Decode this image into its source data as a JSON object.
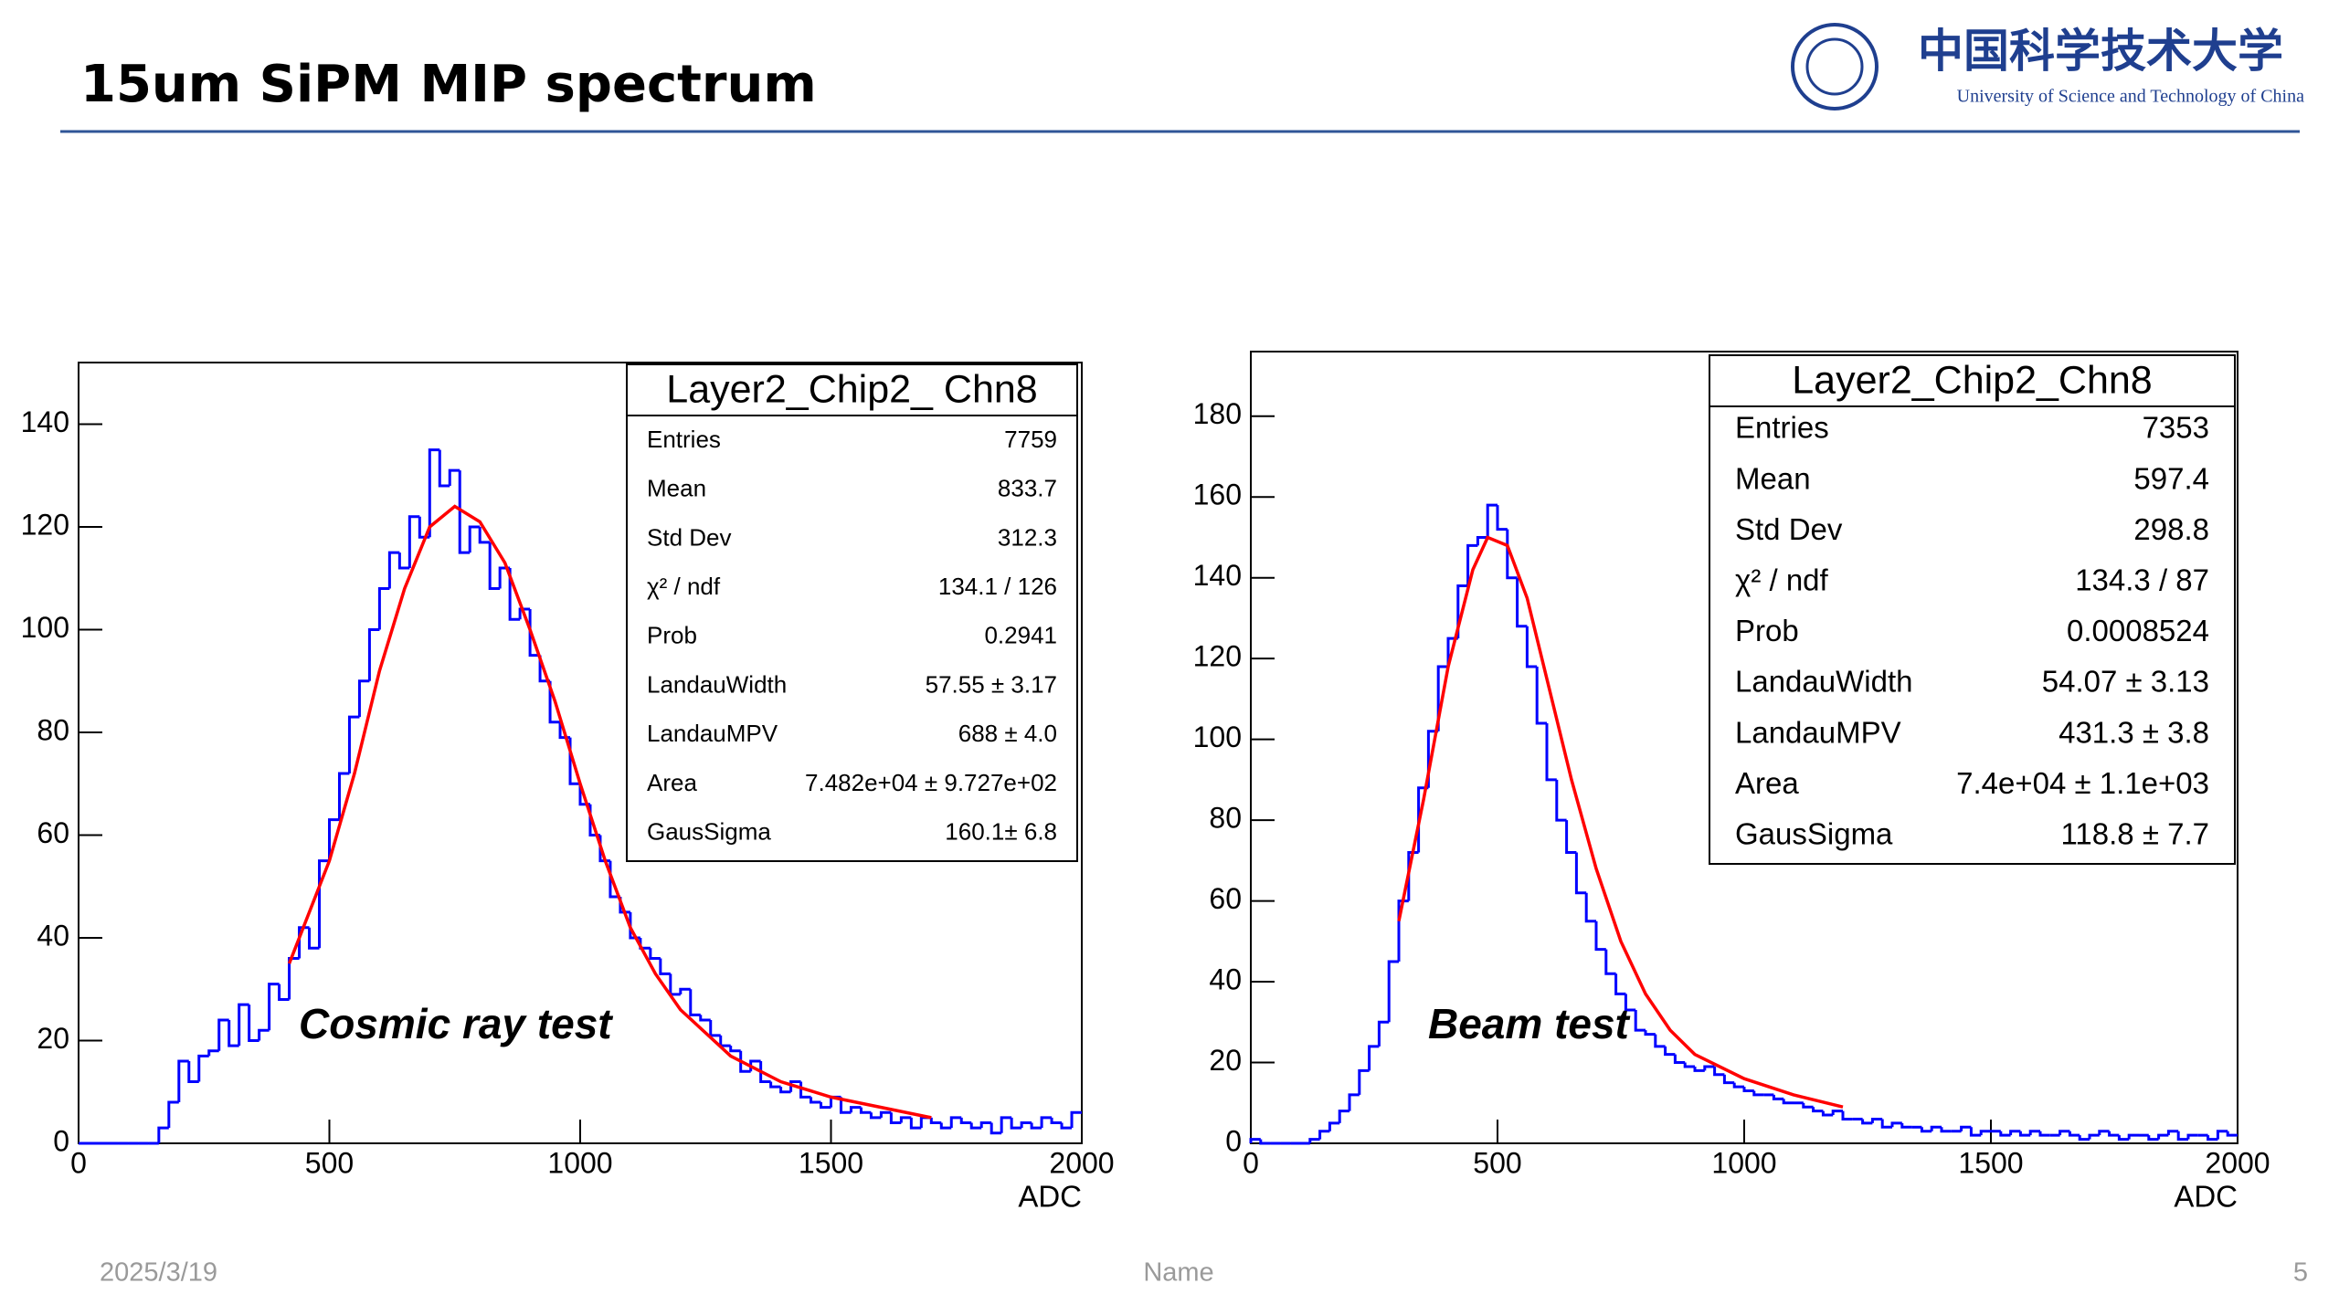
{
  "header": {
    "title": "15um SiPM MIP spectrum",
    "logo_cn": "中国科学技术大学",
    "logo_en": "University of Science and Technology of China"
  },
  "footer": {
    "date": "2025/3/19",
    "name": "Name",
    "page": "5"
  },
  "chart_data": [
    {
      "type": "histogram",
      "title": "Layer2_Chip2_ Chn8",
      "annotation": "Cosmic ray test",
      "xlabel": "ADC",
      "color": "#0000ff",
      "stats": [
        {
          "label": "Entries",
          "value": "7759"
        },
        {
          "label": "Mean",
          "value": "833.7"
        },
        {
          "label": "Std Dev",
          "value": "312.3"
        },
        {
          "label": "χ² / ndf",
          "value": "134.1 / 126"
        },
        {
          "label": "Prob",
          "value": "0.2941"
        },
        {
          "label": "LandauWidth",
          "value": "57.55 ± 3.17"
        },
        {
          "label": "LandauMPV",
          "value": "688 ± 4.0"
        },
        {
          "label": "Area",
          "value": "7.482e+04 ± 9.727e+02"
        },
        {
          "label": "GausSigma",
          "value": "160.1± 6.8"
        }
      ],
      "bins": [
        0,
        20,
        40,
        60,
        80,
        100,
        120,
        140,
        160,
        180,
        200,
        220,
        240,
        260,
        280,
        300,
        320,
        340,
        360,
        380,
        400,
        420,
        440,
        460,
        480,
        500,
        520,
        540,
        560,
        580,
        600,
        620,
        640,
        660,
        680,
        700,
        720,
        740,
        760,
        780,
        800,
        820,
        840,
        860,
        880,
        900,
        920,
        940,
        960,
        980,
        1000,
        1020,
        1040,
        1060,
        1080,
        1100,
        1120,
        1140,
        1160,
        1180,
        1200,
        1220,
        1240,
        1260,
        1280,
        1300,
        1320,
        1340,
        1360,
        1380,
        1400,
        1420,
        1440,
        1460,
        1480,
        1500,
        1520,
        1540,
        1560,
        1580,
        1600,
        1620,
        1640,
        1660,
        1680,
        1700,
        1720,
        1740,
        1760,
        1780,
        1800,
        1820,
        1840,
        1860,
        1880,
        1900,
        1920,
        1940,
        1960,
        1980,
        2000
      ],
      "values": [
        0,
        0,
        0,
        0,
        0,
        0,
        0,
        0,
        3,
        8,
        16,
        12,
        17,
        18,
        24,
        19,
        27,
        20,
        22,
        31,
        28,
        36,
        42,
        38,
        55,
        63,
        72,
        83,
        90,
        100,
        108,
        115,
        112,
        122,
        118,
        135,
        128,
        131,
        115,
        120,
        117,
        108,
        112,
        102,
        104,
        95,
        90,
        82,
        79,
        70,
        66,
        60,
        55,
        48,
        45,
        40,
        38,
        36,
        33,
        29,
        30,
        25,
        24,
        21,
        19,
        18,
        14,
        16,
        12,
        11,
        10,
        12,
        9,
        8,
        7,
        9,
        6,
        7,
        6,
        5,
        6,
        4,
        5,
        3,
        5,
        4,
        3,
        5,
        4,
        3,
        4,
        2,
        5,
        3,
        4,
        3,
        5,
        4,
        3,
        6
      ],
      "fit": {
        "color": "#ff0000",
        "x": [
          420,
          500,
          550,
          600,
          650,
          700,
          750,
          800,
          850,
          900,
          950,
          1000,
          1050,
          1100,
          1150,
          1200,
          1300,
          1400,
          1500,
          1600,
          1700
        ],
        "y": [
          35,
          55,
          72,
          92,
          108,
          120,
          124,
          121,
          113,
          100,
          86,
          70,
          55,
          42,
          33,
          26,
          17,
          12,
          9,
          7,
          5
        ]
      },
      "xlim": [
        0,
        2000
      ],
      "ylim": [
        0,
        152
      ],
      "xticks": [
        0,
        500,
        1000,
        1500,
        2000
      ],
      "yticks": [
        0,
        20,
        40,
        60,
        80,
        100,
        120,
        140
      ]
    },
    {
      "type": "histogram",
      "title": "Layer2_Chip2_Chn8",
      "annotation": "Beam test",
      "xlabel": "ADC",
      "color": "#0000ff",
      "stats": [
        {
          "label": "Entries",
          "value": "7353"
        },
        {
          "label": "Mean",
          "value": "597.4"
        },
        {
          "label": "Std Dev",
          "value": "298.8"
        },
        {
          "label": "χ² / ndf",
          "value": "134.3 / 87"
        },
        {
          "label": "Prob",
          "value": "0.0008524"
        },
        {
          "label": "LandauWidth",
          "value": "54.07 ± 3.13"
        },
        {
          "label": "LandauMPV",
          "value": "431.3 ± 3.8"
        },
        {
          "label": "Area",
          "value": "7.4e+04 ± 1.1e+03"
        },
        {
          "label": "GausSigma",
          "value": "118.8 ± 7.7"
        }
      ],
      "bins": [
        0,
        20,
        40,
        60,
        80,
        100,
        120,
        140,
        160,
        180,
        200,
        220,
        240,
        260,
        280,
        300,
        320,
        340,
        360,
        380,
        400,
        420,
        440,
        460,
        480,
        500,
        520,
        540,
        560,
        580,
        600,
        620,
        640,
        660,
        680,
        700,
        720,
        740,
        760,
        780,
        800,
        820,
        840,
        860,
        880,
        900,
        920,
        940,
        960,
        980,
        1000,
        1020,
        1040,
        1060,
        1080,
        1100,
        1120,
        1140,
        1160,
        1180,
        1200,
        1220,
        1240,
        1260,
        1280,
        1300,
        1320,
        1340,
        1360,
        1380,
        1400,
        1420,
        1440,
        1460,
        1480,
        1500,
        1520,
        1540,
        1560,
        1580,
        1600,
        1620,
        1640,
        1660,
        1680,
        1700,
        1720,
        1740,
        1760,
        1780,
        1800,
        1820,
        1840,
        1860,
        1880,
        1900,
        1920,
        1940,
        1960,
        1980,
        2000
      ],
      "values": [
        1,
        0,
        0,
        0,
        0,
        0,
        1,
        3,
        5,
        8,
        12,
        18,
        24,
        30,
        45,
        60,
        72,
        88,
        102,
        118,
        125,
        138,
        148,
        150,
        158,
        152,
        140,
        128,
        118,
        104,
        90,
        80,
        72,
        62,
        55,
        48,
        42,
        37,
        33,
        28,
        27,
        24,
        22,
        20,
        19,
        18,
        19,
        17,
        15,
        14,
        13,
        12,
        12,
        11,
        10,
        10,
        9,
        8,
        7,
        8,
        6,
        6,
        5,
        6,
        4,
        5,
        4,
        4,
        3,
        4,
        3,
        3,
        4,
        2,
        3,
        3,
        2,
        3,
        2,
        3,
        2,
        2,
        3,
        2,
        1,
        2,
        3,
        2,
        1,
        2,
        2,
        1,
        2,
        3,
        1,
        2,
        2,
        1,
        3,
        2
      ],
      "fit": {
        "color": "#ff0000",
        "x": [
          300,
          350,
          400,
          450,
          480,
          520,
          560,
          600,
          650,
          700,
          750,
          800,
          850,
          900,
          1000,
          1100,
          1200
        ],
        "y": [
          55,
          85,
          118,
          142,
          150,
          148,
          135,
          115,
          90,
          68,
          50,
          37,
          28,
          22,
          16,
          12,
          9
        ]
      },
      "xlim": [
        0,
        2000
      ],
      "ylim": [
        0,
        196
      ],
      "xticks": [
        0,
        500,
        1000,
        1500,
        2000
      ],
      "yticks": [
        0,
        20,
        40,
        60,
        80,
        100,
        120,
        140,
        160,
        180
      ]
    }
  ]
}
